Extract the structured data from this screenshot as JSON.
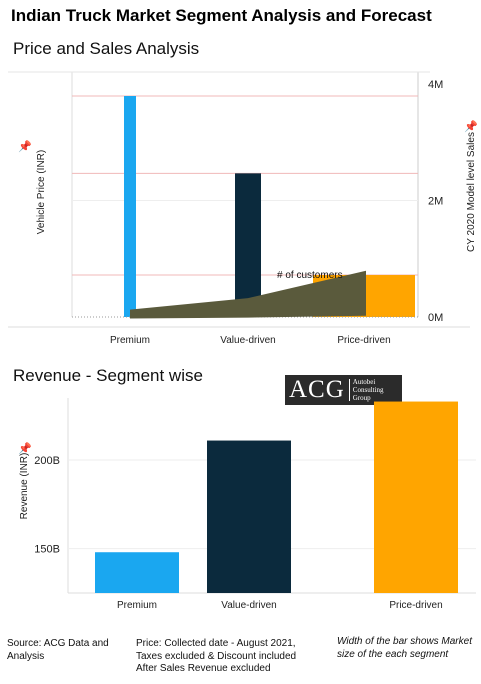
{
  "title": "Indian Truck Market Segment Analysis and Forecast",
  "logo": {
    "main": "ACG",
    "sub": "Autobei\nConsulting\nGroup"
  },
  "chart_data": [
    {
      "type": "bar",
      "title": "Price and Sales Analysis",
      "categories": [
        "Premium",
        "Value-driven",
        "Price-driven"
      ],
      "ylabel": "Vehicle Price (INR)",
      "y2label": "CY 2020 Model  level Sales",
      "y2ticks": [
        "0M",
        "2M",
        "4M"
      ],
      "y2lim": [
        0,
        4000000
      ],
      "series": [
        {
          "axis": "left",
          "values": [
            1.0,
            0.65,
            0.19
          ],
          "colors": [
            "#1aa7f0",
            "#0b2a3d",
            "#ffa500"
          ]
        },
        {
          "name": "# of customers",
          "axis": "right",
          "type": "line",
          "values": [
            3.5,
            9.0,
            22.0
          ]
        }
      ],
      "annotations": [
        "# of customers"
      ]
    },
    {
      "type": "bar",
      "title": "Revenue - Segment wise",
      "categories": [
        "Premium",
        "Value-driven",
        "Price-driven"
      ],
      "ylabel": "Revenue (INR)",
      "yticks": [
        "150B",
        "200B"
      ],
      "ylim": [
        125,
        235
      ],
      "values": [
        148,
        211,
        233
      ],
      "colors": [
        "#1aa7f0",
        "#0b2a3d",
        "#ffa500"
      ]
    }
  ],
  "footer": {
    "source": "Source: ACG Data and Analysis",
    "price_note": "Price: Collected date -  August 2021, Taxes excluded & Discount included After Sales Revenue excluded",
    "width_note": "Width of the bar shows Market size of the each segment"
  }
}
